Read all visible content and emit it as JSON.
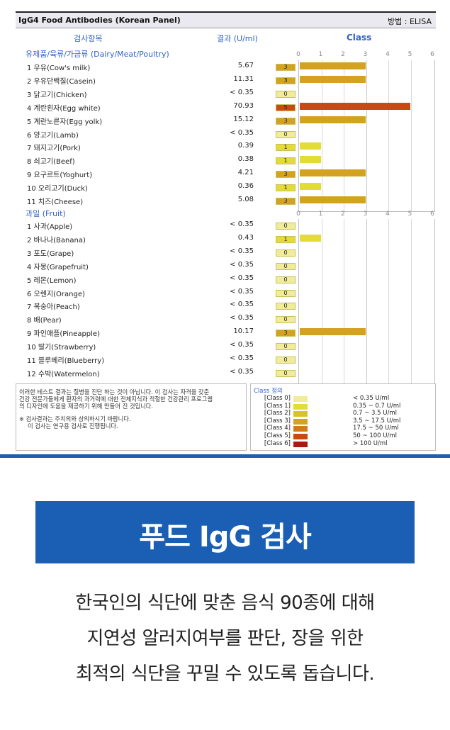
{
  "report": {
    "title": "IgG4 Food Antibodies (Korean Panel)",
    "method": "방법 : ELISA",
    "col_item": "검사항목",
    "col_result": "결과 (U/ml)",
    "col_class": "Class",
    "ticks": [
      "0",
      "1",
      "2",
      "3",
      "4",
      "5",
      "6"
    ],
    "sections": [
      {
        "label": "유제품/육류/가금류 (Dairy/Meat/Poultry)",
        "rows": [
          {
            "name": "1  우유(Cow's milk)",
            "value": "5.67",
            "cls": "3"
          },
          {
            "name": "2  우유단백질(Casein)",
            "value": "11.31",
            "cls": "3"
          },
          {
            "name": "3  닭고기(Chicken)",
            "value": "< 0.35",
            "cls": "0"
          },
          {
            "name": "4  계란흰자(Egg white)",
            "value": "70.93",
            "cls": "5"
          },
          {
            "name": "5  계란노른자(Egg yolk)",
            "value": "15.12",
            "cls": "3"
          },
          {
            "name": "6  양고기(Lamb)",
            "value": "< 0.35",
            "cls": "0"
          },
          {
            "name": "7  돼지고기(Pork)",
            "value": "0.39",
            "cls": "1"
          },
          {
            "name": "8  쇠고기(Beef)",
            "value": "0.38",
            "cls": "1"
          },
          {
            "name": "9  요구르트(Yoghurt)",
            "value": "4.21",
            "cls": "3"
          },
          {
            "name": "10 오리고기(Duck)",
            "value": "0.36",
            "cls": "1"
          },
          {
            "name": "11 치즈(Cheese)",
            "value": "5.08",
            "cls": "3"
          }
        ]
      },
      {
        "label": "과일 (Fruit)",
        "rows": [
          {
            "name": "1  사과(Apple)",
            "value": "< 0.35",
            "cls": "0"
          },
          {
            "name": "2  바나나(Banana)",
            "value": "0.43",
            "cls": "1"
          },
          {
            "name": "3  포도(Grape)",
            "value": "< 0.35",
            "cls": "0"
          },
          {
            "name": "4  자몽(Grapefruit)",
            "value": "< 0.35",
            "cls": "0"
          },
          {
            "name": "5  레몬(Lemon)",
            "value": "< 0.35",
            "cls": "0"
          },
          {
            "name": "6  오렌지(Orange)",
            "value": "< 0.35",
            "cls": "0"
          },
          {
            "name": "7  복숭아(Peach)",
            "value": "< 0.35",
            "cls": "0"
          },
          {
            "name": "8  배(Pear)",
            "value": "< 0.35",
            "cls": "0"
          },
          {
            "name": "9  파인애플(Pineapple)",
            "value": "10.17",
            "cls": "3"
          },
          {
            "name": "10 딸기(Strawberry)",
            "value": "< 0.35",
            "cls": "0"
          },
          {
            "name": "11 블루베리(Blueberry)",
            "value": "< 0.35",
            "cls": "0"
          },
          {
            "name": "12 수박(Watermelon)",
            "value": "< 0.35",
            "cls": "0"
          }
        ]
      }
    ],
    "notes": [
      "이러한 테스트 결과는 질병을 진단 하는 것이 아닙니다.   이 검사는 자격을 갖춘",
      "건강 전문가들에게 환자의 과거력에 대한 전체지식과 적절한 건강관리 프로그램",
      "의 디자인에 도움을 제공하기 위해 만들어 진 것입니다.",
      "※ 검사결과는 주치의와 상의하시기 바랍니다.",
      "이 검사는 연구용 검사로 진행됩니다."
    ],
    "legend": {
      "title": "Class 정의",
      "items": [
        {
          "label": "[Class 0]",
          "range": "< 0.35 U/ml",
          "color": "#f1ec9a"
        },
        {
          "label": "[Class 1]",
          "range": "0.35 ~ 0.7 U/ml",
          "color": "#e4dc36"
        },
        {
          "label": "[Class 2]",
          "range": "0.7 ~ 3.5 U/ml",
          "color": "#d8c22a"
        },
        {
          "label": "[Class 3]",
          "range": "3.5 ~ 17.5 U/ml",
          "color": "#d3a21f"
        },
        {
          "label": "[Class 4]",
          "range": "17.5 ~ 50 U/ml",
          "color": "#cf7a1c"
        },
        {
          "label": "[Class 5]",
          "range": "50 ~ 100 U/ml",
          "color": "#c84a12"
        },
        {
          "label": "[Class 6]",
          "range": "> 100 U/ml",
          "color": "#a81a10"
        }
      ]
    }
  },
  "banner": {
    "title": "푸드 IgG 검사",
    "lines": [
      "한국인의 식단에 맞춘 음식 90종에 대해",
      "지연성 알러지여부를 판단, 장을 위한",
      "최적의 식단을 꾸밀 수 있도록 돕습니다."
    ]
  }
}
